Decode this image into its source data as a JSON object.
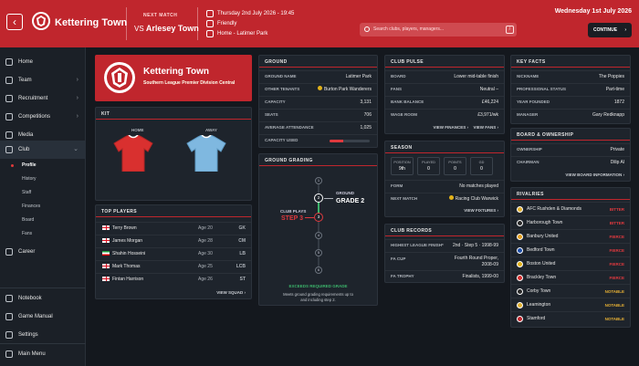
{
  "header": {
    "back_label": "‹",
    "club_name": "Kettering Town",
    "next_match_label": "NEXT MATCH",
    "vs_label": "VS",
    "opponent": "Arlesey Town",
    "match_date": "Thursday 2nd July 2026 - 19:45",
    "match_type": "Friendly",
    "match_venue": "Home - Latimer Park",
    "search_placeholder": "Search clubs, players, managers...",
    "search_shortcut": "/",
    "current_date": "Wednesday 1st July 2026",
    "continue_label": "CONTINUE",
    "continue_arrow": "›",
    "accent": "#c0262d"
  },
  "sidebar": {
    "items": [
      {
        "label": "Home",
        "icon": "home-icon"
      },
      {
        "label": "Team",
        "icon": "team-icon",
        "chevron": "›"
      },
      {
        "label": "Recruitment",
        "icon": "recruitment-icon",
        "chevron": "›"
      },
      {
        "label": "Competitions",
        "icon": "trophy-icon",
        "chevron": "›"
      },
      {
        "label": "Media",
        "icon": "media-icon"
      },
      {
        "label": "Club",
        "icon": "club-icon",
        "chevron": "⌄"
      },
      {
        "label": "Career",
        "icon": "career-icon"
      }
    ],
    "club_sub": [
      "Profile",
      "History",
      "Staff",
      "Finances",
      "Board",
      "Fans"
    ],
    "bottom": [
      {
        "label": "Notebook",
        "icon": "notebook-icon"
      },
      {
        "label": "Game Manual",
        "icon": "manual-icon"
      },
      {
        "label": "Settings",
        "icon": "gear-icon"
      },
      {
        "label": "Main Menu",
        "icon": "menu-icon"
      }
    ]
  },
  "hero": {
    "title": "Kettering Town",
    "subtitle": "Southern League Premier Division Central"
  },
  "kit": {
    "title": "KIT",
    "home_label": "HOME",
    "away_label": "AWAY",
    "home_color": "#d9302f",
    "away_color": "#7fb8e0"
  },
  "top_players": {
    "title": "TOP PLAYERS",
    "players": [
      {
        "name": "Terry Brown",
        "age": "Age 20",
        "pos": "GK",
        "flag": "eng"
      },
      {
        "name": "James Morgan",
        "age": "Age 28",
        "pos": "CM",
        "flag": "eng"
      },
      {
        "name": "Shahin Hosseini",
        "age": "Age 30",
        "pos": "LB",
        "flag": "ir"
      },
      {
        "name": "Mark Thomas",
        "age": "Age 25",
        "pos": "LCB",
        "flag": "eng"
      },
      {
        "name": "Fintan Harrison",
        "age": "Age 26",
        "pos": "ST",
        "flag": "eng"
      }
    ],
    "footer": "VIEW SQUAD ›"
  },
  "ground": {
    "title": "GROUND",
    "rows": [
      {
        "k": "GROUND NAME",
        "v": "Latimer Park"
      },
      {
        "k": "OTHER TENANTS",
        "v": "Burton Park Wanderers"
      },
      {
        "k": "CAPACITY",
        "v": "3,131"
      },
      {
        "k": "SEATS",
        "v": "706"
      },
      {
        "k": "AVERAGE ATTENDANCE",
        "v": "1,025"
      },
      {
        "k": "CAPACITY USED",
        "v": ""
      }
    ],
    "capacity_used": 0.33
  },
  "grading": {
    "title": "GROUND GRADING",
    "steps": [
      "1",
      "2",
      "3",
      "4",
      "5",
      "6"
    ],
    "ground_label": "GROUND",
    "ground_grade": "GRADE 2",
    "club_plays_label": "CLUB PLAYS",
    "club_step": "STEP 3",
    "status": "EXCEEDS REQUIRED GRADE",
    "note": "Meets ground grading requirements up to and including step 2."
  },
  "club_pulse": {
    "title": "CLUB PULSE",
    "rows": [
      {
        "k": "BOARD",
        "v": "Lower mid-table finish"
      },
      {
        "k": "FANS",
        "v": "Neutral –"
      },
      {
        "k": "BANK BALANCE",
        "v": "£46,224"
      },
      {
        "k": "WAGE ROOM",
        "v": "£3,971/wk"
      }
    ],
    "link1": "VIEW FINANCES ›",
    "link2": "VIEW FANS ›"
  },
  "season": {
    "title": "SEASON",
    "stats": [
      {
        "k": "POSITION",
        "v": "9th"
      },
      {
        "k": "PLAYED",
        "v": "0"
      },
      {
        "k": "POINTS",
        "v": "0"
      },
      {
        "k": "GD",
        "v": "0"
      }
    ],
    "form_label": "FORM",
    "form_value": "No matches played",
    "next_label": "NEXT MATCH",
    "next_value": "Racing Club Warwick",
    "footer": "VIEW FIXTURES ›"
  },
  "records": {
    "title": "CLUB RECORDS",
    "rows": [
      {
        "k": "HIGHEST LEAGUE FINISH*",
        "v": "2nd · Step 5 · 1998-99"
      },
      {
        "k": "FA CUP",
        "v": "Fourth Round Proper,",
        "v2": "2008-09"
      },
      {
        "k": "FA TROPHY",
        "v": "Finalists, 1999-00"
      }
    ]
  },
  "key_facts": {
    "title": "KEY FACTS",
    "rows": [
      {
        "k": "NICKNAME",
        "v": "The Poppies"
      },
      {
        "k": "PROFESSIONAL STATUS",
        "v": "Part-time"
      },
      {
        "k": "YEAR FOUNDED",
        "v": "1872"
      },
      {
        "k": "MANAGER",
        "v": "Gary Redknapp"
      }
    ]
  },
  "board": {
    "title": "BOARD & OWNERSHIP",
    "rows": [
      {
        "k": "OWNERSHIP",
        "v": "Private"
      },
      {
        "k": "CHAIRMAN",
        "v": "Dilip Al"
      }
    ],
    "footer": "VIEW BOARD INFORMATION ›"
  },
  "rivalries": {
    "title": "RIVALRIES",
    "items": [
      {
        "name": "AFC Rushden & Diamonds",
        "level": "BITTER",
        "cls": "bitter",
        "color": "#e0b030"
      },
      {
        "name": "Harborough Town",
        "level": "BITTER",
        "cls": "bitter",
        "color": "#2a2a2a"
      },
      {
        "name": "Banbury United",
        "level": "FIERCE",
        "cls": "fierce",
        "color": "#e6a020"
      },
      {
        "name": "Bedford Town",
        "level": "FIERCE",
        "cls": "fierce",
        "color": "#1f4fa8"
      },
      {
        "name": "Boston United",
        "level": "FIERCE",
        "cls": "fierce",
        "color": "#e3b21a"
      },
      {
        "name": "Brackley Town",
        "level": "FIERCE",
        "cls": "fierce",
        "color": "#d32f2f"
      },
      {
        "name": "Corby Town",
        "level": "NOTABLE",
        "cls": "notable",
        "color": "#2a2a2a"
      },
      {
        "name": "Leamington",
        "level": "NOTABLE",
        "cls": "notable",
        "color": "#e0b030"
      },
      {
        "name": "Stamford",
        "level": "NOTABLE",
        "cls": "notable",
        "color": "#c0262d"
      }
    ]
  }
}
